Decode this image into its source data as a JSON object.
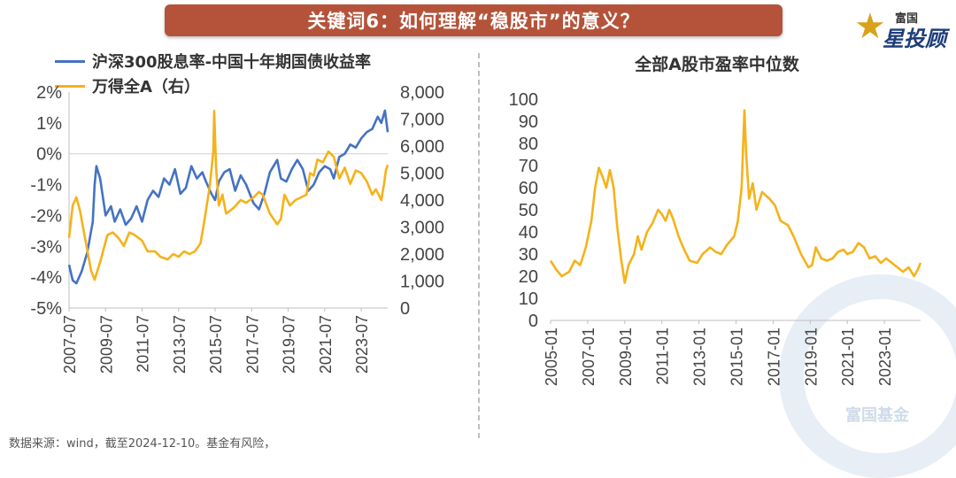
{
  "banner": {
    "title": "关键词6：如何理解“稳股市”的意义？"
  },
  "logo": {
    "line1": "富国",
    "line2": "星投顾",
    "icon": "star-icon"
  },
  "watermark": {
    "text": "富国基金"
  },
  "source": "数据来源：wind，截至2024-12-10。基金有风险，",
  "colors": {
    "blue": "#4472c4",
    "gold": "#f5b21a",
    "banner": "#b5533a"
  },
  "chart_data": [
    {
      "type": "line",
      "title": "",
      "xlabel": "",
      "ylabel": "",
      "x_ticks": [
        "2007-07",
        "2009-07",
        "2011-07",
        "2013-07",
        "2015-07",
        "2017-07",
        "2019-07",
        "2021-07",
        "2023-07"
      ],
      "y_left_ticks": [
        "2%",
        "1%",
        "0%",
        "-1%",
        "-2%",
        "-3%",
        "-4%",
        "-5%"
      ],
      "y_right_ticks": [
        "8,000",
        "7,000",
        "6,000",
        "5,000",
        "4,000",
        "3,000",
        "2,000",
        "1,000",
        "0"
      ],
      "ylim_left": [
        -5,
        2
      ],
      "ylim_right": [
        0,
        8000
      ],
      "xlim": [
        2007.5,
        2024.95
      ],
      "legend_position": "top-left",
      "grid": false,
      "series": [
        {
          "name": "沪深300股息率-中国十年期国债收益率",
          "axis": "left",
          "color": "#4472c4",
          "points": [
            [
              2007.5,
              -3.6
            ],
            [
              2007.7,
              -4.1
            ],
            [
              2007.9,
              -4.2
            ],
            [
              2008.2,
              -3.8
            ],
            [
              2008.5,
              -3.2
            ],
            [
              2008.8,
              -2.2
            ],
            [
              2008.9,
              -1.0
            ],
            [
              2009.0,
              -0.4
            ],
            [
              2009.2,
              -0.8
            ],
            [
              2009.5,
              -2.0
            ],
            [
              2009.8,
              -1.7
            ],
            [
              2010.0,
              -2.2
            ],
            [
              2010.3,
              -1.8
            ],
            [
              2010.6,
              -2.3
            ],
            [
              2010.9,
              -2.1
            ],
            [
              2011.2,
              -1.7
            ],
            [
              2011.5,
              -2.2
            ],
            [
              2011.8,
              -1.5
            ],
            [
              2012.1,
              -1.2
            ],
            [
              2012.4,
              -1.4
            ],
            [
              2012.7,
              -0.8
            ],
            [
              2013.0,
              -1.0
            ],
            [
              2013.3,
              -0.5
            ],
            [
              2013.6,
              -1.3
            ],
            [
              2013.9,
              -1.1
            ],
            [
              2014.2,
              -0.4
            ],
            [
              2014.5,
              -0.8
            ],
            [
              2014.8,
              -0.6
            ],
            [
              2015.0,
              -0.9
            ],
            [
              2015.3,
              -1.3
            ],
            [
              2015.5,
              -1.5
            ],
            [
              2015.7,
              -0.9
            ],
            [
              2016.0,
              -0.6
            ],
            [
              2016.3,
              -0.5
            ],
            [
              2016.6,
              -1.2
            ],
            [
              2016.9,
              -0.7
            ],
            [
              2017.2,
              -1.0
            ],
            [
              2017.6,
              -1.6
            ],
            [
              2017.9,
              -1.8
            ],
            [
              2018.2,
              -1.3
            ],
            [
              2018.5,
              -0.6
            ],
            [
              2018.9,
              -0.2
            ],
            [
              2019.1,
              -0.8
            ],
            [
              2019.4,
              -0.9
            ],
            [
              2019.7,
              -0.5
            ],
            [
              2020.0,
              -0.2
            ],
            [
              2020.3,
              -0.5
            ],
            [
              2020.6,
              -1.2
            ],
            [
              2020.9,
              -1.0
            ],
            [
              2021.2,
              -0.6
            ],
            [
              2021.5,
              -0.4
            ],
            [
              2021.8,
              -0.5
            ],
            [
              2022.0,
              -0.8
            ],
            [
              2022.3,
              -0.1
            ],
            [
              2022.6,
              0.0
            ],
            [
              2022.9,
              0.3
            ],
            [
              2023.2,
              0.2
            ],
            [
              2023.5,
              0.5
            ],
            [
              2023.8,
              0.7
            ],
            [
              2024.1,
              0.8
            ],
            [
              2024.4,
              1.2
            ],
            [
              2024.6,
              1.0
            ],
            [
              2024.8,
              1.4
            ],
            [
              2024.95,
              0.7
            ]
          ]
        },
        {
          "name": "万得全A（右）",
          "axis": "right",
          "color": "#f5b21a",
          "points": [
            [
              2007.5,
              2600
            ],
            [
              2007.7,
              3800
            ],
            [
              2007.9,
              4100
            ],
            [
              2008.1,
              3600
            ],
            [
              2008.4,
              2500
            ],
            [
              2008.7,
              1400
            ],
            [
              2008.9,
              1050
            ],
            [
              2009.2,
              1700
            ],
            [
              2009.6,
              2700
            ],
            [
              2009.9,
              2800
            ],
            [
              2010.2,
              2600
            ],
            [
              2010.5,
              2300
            ],
            [
              2010.8,
              2800
            ],
            [
              2011.1,
              2700
            ],
            [
              2011.5,
              2500
            ],
            [
              2011.8,
              2100
            ],
            [
              2012.2,
              2100
            ],
            [
              2012.5,
              1900
            ],
            [
              2012.9,
              1800
            ],
            [
              2013.2,
              2000
            ],
            [
              2013.5,
              1900
            ],
            [
              2013.8,
              2100
            ],
            [
              2014.1,
              2000
            ],
            [
              2014.4,
              2100
            ],
            [
              2014.7,
              2400
            ],
            [
              2014.9,
              3200
            ],
            [
              2015.2,
              4500
            ],
            [
              2015.4,
              5800
            ],
            [
              2015.45,
              7300
            ],
            [
              2015.55,
              5200
            ],
            [
              2015.7,
              3800
            ],
            [
              2015.9,
              4200
            ],
            [
              2016.1,
              3500
            ],
            [
              2016.5,
              3700
            ],
            [
              2016.9,
              4000
            ],
            [
              2017.2,
              3900
            ],
            [
              2017.6,
              4100
            ],
            [
              2017.9,
              4300
            ],
            [
              2018.1,
              4200
            ],
            [
              2018.5,
              3500
            ],
            [
              2018.9,
              3100
            ],
            [
              2019.1,
              3300
            ],
            [
              2019.3,
              4200
            ],
            [
              2019.6,
              3800
            ],
            [
              2019.9,
              4000
            ],
            [
              2020.2,
              4100
            ],
            [
              2020.5,
              4200
            ],
            [
              2020.7,
              5000
            ],
            [
              2020.9,
              4900
            ],
            [
              2021.1,
              5500
            ],
            [
              2021.4,
              5400
            ],
            [
              2021.7,
              5800
            ],
            [
              2022.0,
              5600
            ],
            [
              2022.3,
              4800
            ],
            [
              2022.6,
              5200
            ],
            [
              2022.9,
              4600
            ],
            [
              2023.2,
              5100
            ],
            [
              2023.5,
              5000
            ],
            [
              2023.8,
              4700
            ],
            [
              2024.1,
              4200
            ],
            [
              2024.3,
              4400
            ],
            [
              2024.6,
              4000
            ],
            [
              2024.75,
              4600
            ],
            [
              2024.85,
              5100
            ],
            [
              2024.95,
              5300
            ]
          ]
        }
      ]
    },
    {
      "type": "line",
      "title": "全部A股市盈率中位数",
      "xlabel": "",
      "ylabel": "",
      "x_ticks": [
        "2005-01",
        "2007-01",
        "2009-01",
        "2011-01",
        "2013-01",
        "2015-01",
        "2017-01",
        "2019-01",
        "2021-01",
        "2023-01"
      ],
      "y_ticks": [
        "100",
        "90",
        "80",
        "70",
        "60",
        "50",
        "40",
        "30",
        "20",
        "10",
        "0"
      ],
      "ylim": [
        0,
        100
      ],
      "xlim": [
        2005.0,
        2024.95
      ],
      "grid": false,
      "series": [
        {
          "color": "#f5b21a",
          "points": [
            [
              2005.0,
              27
            ],
            [
              2005.3,
              23
            ],
            [
              2005.6,
              20
            ],
            [
              2006.0,
              22
            ],
            [
              2006.3,
              27
            ],
            [
              2006.6,
              25
            ],
            [
              2006.9,
              33
            ],
            [
              2007.2,
              45
            ],
            [
              2007.4,
              60
            ],
            [
              2007.6,
              69
            ],
            [
              2007.8,
              65
            ],
            [
              2008.0,
              60
            ],
            [
              2008.2,
              68
            ],
            [
              2008.4,
              60
            ],
            [
              2008.6,
              42
            ],
            [
              2008.8,
              28
            ],
            [
              2009.0,
              17
            ],
            [
              2009.2,
              25
            ],
            [
              2009.5,
              30
            ],
            [
              2009.7,
              38
            ],
            [
              2009.9,
              32
            ],
            [
              2010.2,
              40
            ],
            [
              2010.5,
              44
            ],
            [
              2010.8,
              50
            ],
            [
              2011.0,
              48
            ],
            [
              2011.2,
              45
            ],
            [
              2011.4,
              50
            ],
            [
              2011.6,
              46
            ],
            [
              2011.9,
              38
            ],
            [
              2012.2,
              32
            ],
            [
              2012.5,
              27
            ],
            [
              2012.9,
              26
            ],
            [
              2013.2,
              30
            ],
            [
              2013.6,
              33
            ],
            [
              2013.9,
              31
            ],
            [
              2014.2,
              30
            ],
            [
              2014.5,
              34
            ],
            [
              2014.9,
              38
            ],
            [
              2015.1,
              45
            ],
            [
              2015.3,
              60
            ],
            [
              2015.45,
              95
            ],
            [
              2015.55,
              75
            ],
            [
              2015.7,
              55
            ],
            [
              2015.9,
              62
            ],
            [
              2016.1,
              50
            ],
            [
              2016.4,
              58
            ],
            [
              2016.8,
              55
            ],
            [
              2017.1,
              52
            ],
            [
              2017.4,
              45
            ],
            [
              2017.8,
              43
            ],
            [
              2018.1,
              38
            ],
            [
              2018.5,
              30
            ],
            [
              2018.9,
              24
            ],
            [
              2019.1,
              25
            ],
            [
              2019.3,
              33
            ],
            [
              2019.6,
              28
            ],
            [
              2019.9,
              27
            ],
            [
              2020.2,
              28
            ],
            [
              2020.5,
              31
            ],
            [
              2020.8,
              32
            ],
            [
              2021.0,
              30
            ],
            [
              2021.3,
              31
            ],
            [
              2021.6,
              35
            ],
            [
              2021.9,
              33
            ],
            [
              2022.2,
              28
            ],
            [
              2022.5,
              29
            ],
            [
              2022.8,
              26
            ],
            [
              2023.1,
              28
            ],
            [
              2023.4,
              26
            ],
            [
              2023.7,
              24
            ],
            [
              2024.0,
              22
            ],
            [
              2024.3,
              24
            ],
            [
              2024.6,
              20
            ],
            [
              2024.8,
              23
            ],
            [
              2024.95,
              26
            ]
          ]
        }
      ]
    }
  ]
}
